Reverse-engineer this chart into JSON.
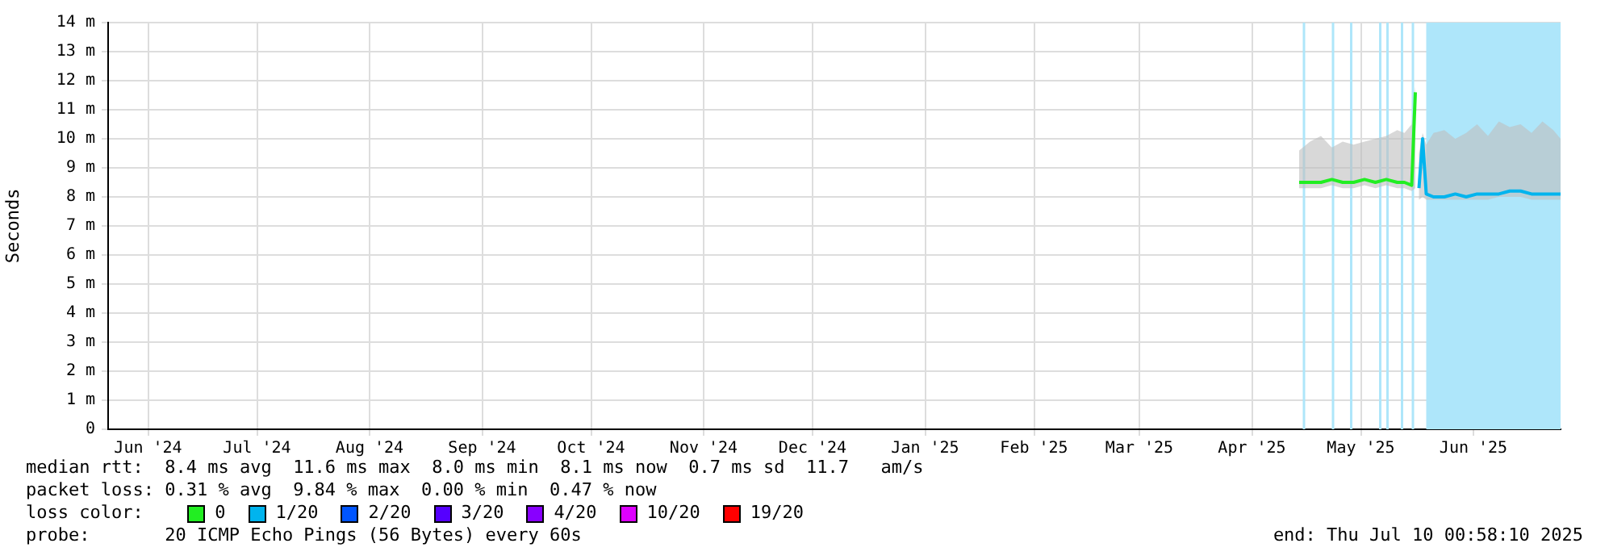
{
  "chart_data": {
    "type": "line",
    "ylabel": "Seconds",
    "legend_title": "loss color:",
    "legend": "bottom",
    "grid": true,
    "marker": "none",
    "line_style": "solid",
    "xlim": [
      "2024-06-05",
      "2025-07-10"
    ],
    "xticks": [
      {
        "value": "2024-06-16",
        "label": "Jun '24"
      },
      {
        "value": "2024-07-16",
        "label": "Jul '24"
      },
      {
        "value": "2024-08-16",
        "label": "Aug '24"
      },
      {
        "value": "2024-09-16",
        "label": "Sep '24"
      },
      {
        "value": "2024-10-16",
        "label": "Oct '24"
      },
      {
        "value": "2024-11-16",
        "label": "Nov '24"
      },
      {
        "value": "2024-12-16",
        "label": "Dec '24"
      },
      {
        "value": "2025-01-16",
        "label": "Jan '25"
      },
      {
        "value": "2025-02-15",
        "label": "Feb '25"
      },
      {
        "value": "2025-03-16",
        "label": "Mar '25"
      },
      {
        "value": "2025-04-16",
        "label": "Apr '25"
      },
      {
        "value": "2025-05-16",
        "label": "May '25"
      },
      {
        "value": "2025-06-16",
        "label": "Jun '25"
      }
    ],
    "ylim": [
      0,
      14
    ],
    "yticks": [
      0,
      {
        "value": 1,
        "label": "1 m"
      },
      {
        "value": 2,
        "label": "2 m"
      },
      {
        "value": 3,
        "label": "3 m"
      },
      {
        "value": 4,
        "label": "4 m"
      },
      {
        "value": 5,
        "label": "5 m"
      },
      {
        "value": 6,
        "label": "6 m"
      },
      {
        "value": 7,
        "label": "7 m"
      },
      {
        "value": 8,
        "label": "8 m"
      },
      {
        "value": 9,
        "label": "9 m"
      },
      {
        "value": 10,
        "label": "10 m"
      },
      {
        "value": 11,
        "label": "11 m"
      },
      {
        "value": 12,
        "label": "12 m"
      },
      {
        "value": 13,
        "label": "13 m"
      },
      {
        "value": 14,
        "label": "14 m"
      }
    ],
    "series": [
      {
        "name": "0",
        "color": "#22ee22",
        "x": [
          "2025-04-29",
          "2025-05-02",
          "2025-05-05",
          "2025-05-08",
          "2025-05-11",
          "2025-05-14",
          "2025-05-17",
          "2025-05-20",
          "2025-05-23",
          "2025-05-26",
          "2025-05-28",
          "2025-05-30",
          "2025-05-31"
        ],
        "values": [
          8.5,
          8.5,
          8.5,
          8.6,
          8.5,
          8.5,
          8.6,
          8.5,
          8.6,
          8.5,
          8.5,
          8.4,
          11.6
        ],
        "upper": [
          9.6,
          9.9,
          10.1,
          9.7,
          9.9,
          9.8,
          9.9,
          10.0,
          10.1,
          10.3,
          10.2,
          10.5,
          11.8
        ],
        "lower": [
          8.3,
          8.3,
          8.3,
          8.4,
          8.3,
          8.3,
          8.4,
          8.3,
          8.4,
          8.3,
          8.3,
          8.2,
          8.3
        ]
      },
      {
        "name": "1/20",
        "color": "#00b4ee",
        "x": [
          "2025-06-01",
          "2025-06-02",
          "2025-06-03",
          "2025-06-05",
          "2025-06-08",
          "2025-06-11",
          "2025-06-14",
          "2025-06-17",
          "2025-06-20",
          "2025-06-23",
          "2025-06-26",
          "2025-06-29",
          "2025-07-02",
          "2025-07-05",
          "2025-07-08",
          "2025-07-10"
        ],
        "values": [
          8.3,
          10.0,
          8.1,
          8.0,
          8.0,
          8.1,
          8.0,
          8.1,
          8.1,
          8.1,
          8.2,
          8.2,
          8.1,
          8.1,
          8.1,
          8.1
        ],
        "upper": [
          9.5,
          10.2,
          9.8,
          10.2,
          10.3,
          10.0,
          10.2,
          10.5,
          10.1,
          10.6,
          10.4,
          10.5,
          10.2,
          10.6,
          10.3,
          10.0
        ],
        "lower": [
          7.9,
          8.0,
          7.9,
          7.9,
          7.9,
          7.9,
          7.9,
          7.9,
          7.9,
          8.0,
          8.0,
          8.0,
          7.9,
          7.9,
          7.9,
          7.9
        ]
      },
      {
        "name": "2/20",
        "color": "#0055ff"
      },
      {
        "name": "3/20",
        "color": "#5500ff"
      },
      {
        "name": "4/20",
        "color": "#8800ff"
      },
      {
        "name": "10/20",
        "color": "#dd00ff"
      },
      {
        "name": "19/20",
        "color": "#ff0000"
      }
    ],
    "bands": [
      {
        "axis": "x",
        "from": "2025-04-30T00:00",
        "to": "2025-04-30T12:00",
        "color": "#aee6fa"
      },
      {
        "axis": "x",
        "from": "2025-05-08T00:00",
        "to": "2025-05-08T12:00",
        "color": "#aee6fa"
      },
      {
        "axis": "x",
        "from": "2025-05-13T00:00",
        "to": "2025-05-13T12:00",
        "color": "#aee6fa"
      },
      {
        "axis": "x",
        "from": "2025-05-21T00:00",
        "to": "2025-05-21T12:00",
        "color": "#aee6fa"
      },
      {
        "axis": "x",
        "from": "2025-05-23T00:00",
        "to": "2025-05-23T12:00",
        "color": "#aee6fa"
      },
      {
        "axis": "x",
        "from": "2025-05-27T00:00",
        "to": "2025-05-27T12:00",
        "color": "#aee6fa"
      },
      {
        "axis": "x",
        "from": "2025-05-30T00:00",
        "to": "2025-05-30T12:00",
        "color": "#aee6fa"
      },
      {
        "axis": "x",
        "from": "2025-06-03",
        "to": "2025-07-10",
        "color": "#aee6fa"
      }
    ],
    "annotations": [
      "median rtt:  8.4 ms avg  11.6 ms max  8.0 ms min  8.1 ms now  0.7 ms sd  11.7   am/s",
      "packet loss: 0.31 % avg  9.84 % max  0.00 % min  0.47 % now",
      "probe:       20 ICMP Echo Pings (56 Bytes) every 60s",
      "end: Thu Jul 10 00:58:10 2025"
    ]
  }
}
